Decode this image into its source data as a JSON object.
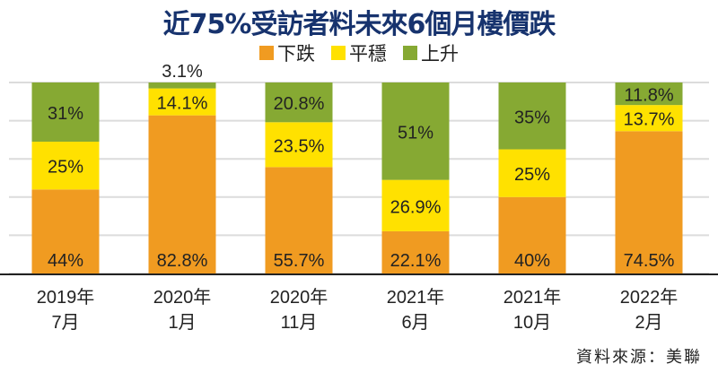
{
  "chart_data": {
    "type": "bar",
    "stacked": true,
    "title": "近75%受訪者料未來6個月樓價跌",
    "categories": [
      [
        "2019年",
        "7月"
      ],
      [
        "2020年",
        "1月"
      ],
      [
        "2020年",
        "11月"
      ],
      [
        "2021年",
        "6月"
      ],
      [
        "2021年",
        "10月"
      ],
      [
        "2022年",
        "2月"
      ]
    ],
    "series": [
      {
        "name": "下跌",
        "color": "#f09b21",
        "values": [
          44,
          82.8,
          55.7,
          22.1,
          40,
          74.5
        ],
        "labels": [
          "44%",
          "82.8%",
          "55.7%",
          "22.1%",
          "40%",
          "74.5%"
        ]
      },
      {
        "name": "平穩",
        "color": "#ffe100",
        "values": [
          25,
          14.1,
          23.5,
          26.9,
          25,
          13.7
        ],
        "labels": [
          "25%",
          "14.1%",
          "23.5%",
          "26.9%",
          "25%",
          "13.7%"
        ]
      },
      {
        "name": "上升",
        "color": "#86a933",
        "values": [
          31,
          3.1,
          20.8,
          51,
          35,
          11.8
        ],
        "labels": [
          "31%",
          "3.1%",
          "20.8%",
          "51%",
          "35%",
          "11.8%"
        ]
      }
    ],
    "ylim": [
      0,
      100
    ],
    "grid": true,
    "legend": "top-center",
    "source": "資料來源：美聯"
  }
}
